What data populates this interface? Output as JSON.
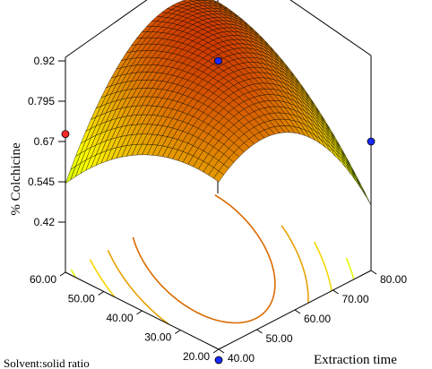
{
  "chart_data": {
    "type": "surface",
    "title": "",
    "zlabel": "% Colchicine",
    "xlabel": "Extraction time",
    "ylabel": "Solvent:solid ratio",
    "z_ticks": [
      "0.42",
      "0.545",
      "0.67",
      "0.795",
      "0.92"
    ],
    "x_ticks": [
      "40.00",
      "50.00",
      "60.00",
      "70.00",
      "80.00"
    ],
    "y_ticks": [
      "20.00",
      "30.00",
      "40.00",
      "50.00",
      "60.00"
    ],
    "zlim": [
      0.42,
      0.92
    ],
    "xlim": [
      40,
      80
    ],
    "ylim": [
      20,
      60
    ],
    "surface_model": {
      "description": "quadratic response surface",
      "peak": {
        "extraction_time": 63,
        "solvent_ratio": 47,
        "colchicine": 0.913
      }
    },
    "design_points": [
      {
        "extraction_time": 60,
        "solvent_ratio": 40,
        "colchicine": 0.895
      },
      {
        "extraction_time": 40,
        "solvent_ratio": 60,
        "colchicine": 0.74
      },
      {
        "extraction_time": 80,
        "solvent_ratio": 20,
        "colchicine": 0.72
      },
      {
        "extraction_time": 40,
        "solvent_ratio": 20,
        "colchicine": 0.42
      }
    ],
    "colors": {
      "low": "#22dd22",
      "mid": "#ffff00",
      "high": "#cc3300",
      "point_red": "#ff2a2a",
      "point_blue": "#1a2aff"
    },
    "grid": false,
    "legend": "none"
  }
}
